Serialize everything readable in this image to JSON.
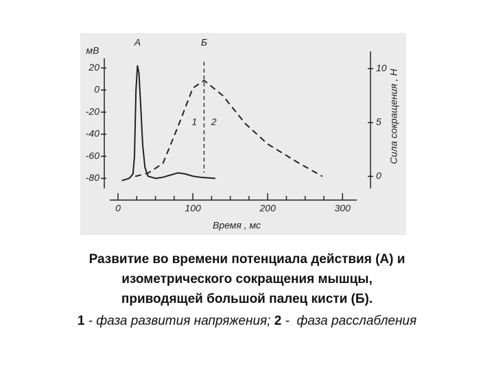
{
  "chart_data": {
    "type": "line",
    "y_unit_label": "мВ",
    "y2_label": "Сила сокращения , Н",
    "x_label": "Время , мс",
    "xlim": [
      -11,
      319
    ],
    "xticks": [
      0,
      100,
      200,
      300
    ],
    "xminorticks": [
      25,
      50,
      75,
      125,
      150,
      175,
      225,
      250,
      275
    ],
    "ylim": [
      -86,
      35
    ],
    "yticks": [
      20,
      0,
      -20,
      -40,
      -60,
      -80
    ],
    "y2lim": [
      -0.8,
      11.6
    ],
    "y2ticks": [
      0,
      5,
      10
    ],
    "markers": [
      {
        "label": "А",
        "x": 26
      },
      {
        "label": "Б",
        "x": 115
      }
    ],
    "phase_labels": [
      {
        "label": "1",
        "x": 102,
        "y": 5
      },
      {
        "label": "2",
        "x": 128,
        "y": 5
      }
    ],
    "series": [
      {
        "name": "А",
        "color": "#222222",
        "style": "solid",
        "x": [
          5,
          15,
          20,
          22,
          24,
          26,
          28,
          30,
          33,
          36,
          40,
          50,
          60,
          70,
          80,
          90,
          100,
          110,
          130
        ],
        "values": [
          -82,
          -80,
          -76,
          -60,
          0,
          22,
          15,
          -10,
          -50,
          -70,
          -78,
          -80,
          -79,
          -77,
          -75,
          -76,
          -78,
          -79,
          -80
        ]
      },
      {
        "name": "Б",
        "color": "#222222",
        "style": "dashed",
        "axis": "y2",
        "x": [
          23,
          40,
          60,
          80,
          100,
          115,
          140,
          170,
          200,
          240,
          273
        ],
        "values": [
          0,
          0.3,
          1.2,
          4.6,
          8.2,
          8.9,
          7.5,
          4.9,
          3.0,
          1.3,
          0
        ]
      }
    ]
  },
  "caption": {
    "lines": [
      "Развитие во времени потенциала действия (А) и",
      "изометрического сокращения мышцы,",
      "приводящей большой палец кисти (Б)."
    ],
    "legend_line": [
      "1",
      " - фаза развития напряжения; ",
      "2",
      " -  фаза расслабления"
    ]
  }
}
